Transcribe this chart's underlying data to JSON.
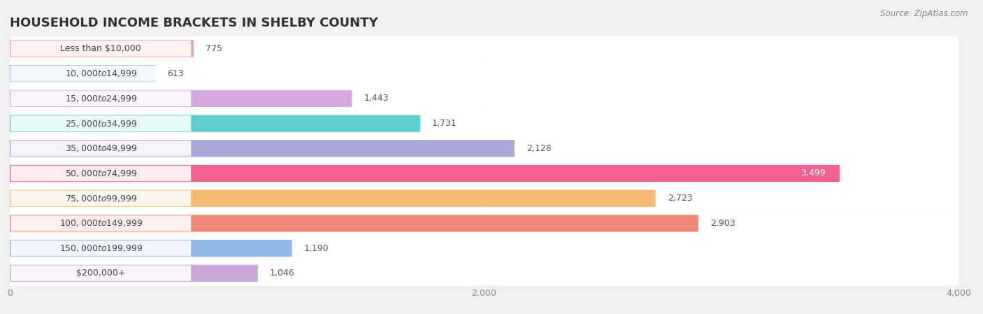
{
  "title": "HOUSEHOLD INCOME BRACKETS IN SHELBY COUNTY",
  "source": "Source: ZipAtlas.com",
  "categories": [
    "Less than $10,000",
    "$10,000 to $14,999",
    "$15,000 to $24,999",
    "$25,000 to $34,999",
    "$35,000 to $49,999",
    "$50,000 to $74,999",
    "$75,000 to $99,999",
    "$100,000 to $149,999",
    "$150,000 to $199,999",
    "$200,000+"
  ],
  "values": [
    775,
    613,
    1443,
    1731,
    2128,
    3499,
    2723,
    2903,
    1190,
    1046
  ],
  "bar_colors": [
    "#F4A0A0",
    "#A8C8F0",
    "#D4A8E0",
    "#5ECFCF",
    "#A8A8D8",
    "#F06090",
    "#F4B870",
    "#F08878",
    "#90B8E8",
    "#C8A8D8"
  ],
  "xlim": [
    0,
    4000
  ],
  "xticks": [
    0,
    2000,
    4000
  ],
  "background_color": "#f0f0f0",
  "title_fontsize": 13,
  "label_fontsize": 9,
  "value_fontsize": 9
}
